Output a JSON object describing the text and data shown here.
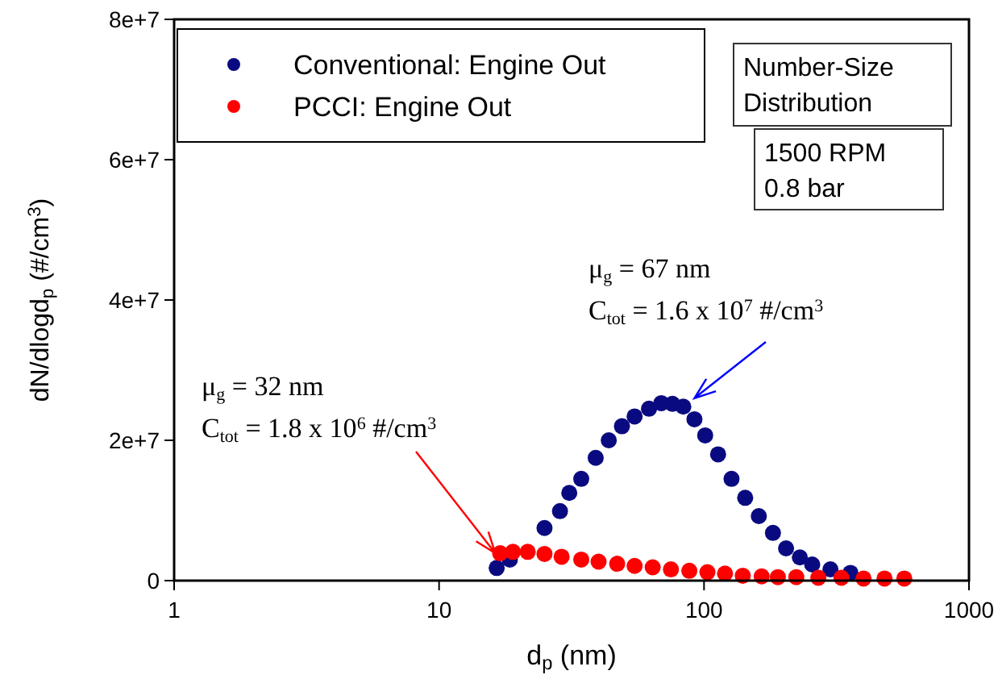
{
  "chart_data": {
    "type": "scatter",
    "xlabel": "d$_{p}$ (nm)",
    "ylabel": "dN/dlogd$_{p}$ (#/cm$^{3}$)",
    "log": "x",
    "xlim": [
      1,
      1000
    ],
    "xticks": [
      1,
      10,
      100,
      1000
    ],
    "ylim": [
      0,
      80000000
    ],
    "yticks": [
      0,
      {
        "value": 20000000,
        "label": "2e+7"
      },
      {
        "value": 40000000,
        "label": "4e+7"
      },
      {
        "value": 60000000,
        "label": "6e+7"
      },
      {
        "value": 80000000,
        "label": "8e+7"
      }
    ],
    "grid": false,
    "legend": "top left",
    "marker": "circle",
    "series": [
      {
        "name": "Conventional: Engine Out",
        "color": "#0a0a80",
        "x": [
          16.5,
          18.5,
          25,
          28.6,
          31,
          34.4,
          39,
          43.7,
          49,
          54.7,
          62,
          69,
          76,
          83.5,
          92,
          101,
          113,
          127,
          143,
          161,
          182,
          204,
          230,
          256,
          300,
          357
        ],
        "values": [
          1800000,
          3000000,
          7500000,
          9900000,
          12500000,
          14500000,
          17500000,
          20000000,
          22000000,
          23400000,
          24500000,
          25300000,
          25200000,
          24800000,
          23000000,
          20700000,
          18000000,
          14500000,
          11800000,
          9200000,
          6800000,
          4600000,
          3300000,
          2300000,
          1600000,
          1100000
        ]
      },
      {
        "name": "PCCI: Engine Out",
        "color": "#ff0000",
        "x": [
          17,
          19,
          21.6,
          25,
          29,
          34.4,
          40,
          47,
          54.7,
          64,
          75,
          88,
          103,
          120,
          140,
          165,
          190,
          223,
          270,
          330,
          400,
          480,
          570
        ],
        "values": [
          3900000,
          4100000,
          4100000,
          3800000,
          3400000,
          3000000,
          2700000,
          2400000,
          2100000,
          1900000,
          1600000,
          1400000,
          1200000,
          1000000,
          700000,
          600000,
          500000,
          500000,
          400000,
          400000,
          300000,
          300000,
          300000
        ]
      }
    ],
    "annotations": [
      "μ$_{g}$ = 67 nm",
      {
        "text": "C$_{tot}$ = 1.6 x 10$^{7}$ #/cm$^{3}$",
        "x": 92,
        "y": 26000000
      },
      "μ$_{g}$ = 32 nm",
      {
        "text": "C$_{tot}$ = 1.8 x 10$^{6}$ #/cm$^{3}$",
        "x": 16.3,
        "y": 3900000
      },
      "Number-Size\nDistribution",
      "1500 RPM\n0.8 bar"
    ]
  }
}
